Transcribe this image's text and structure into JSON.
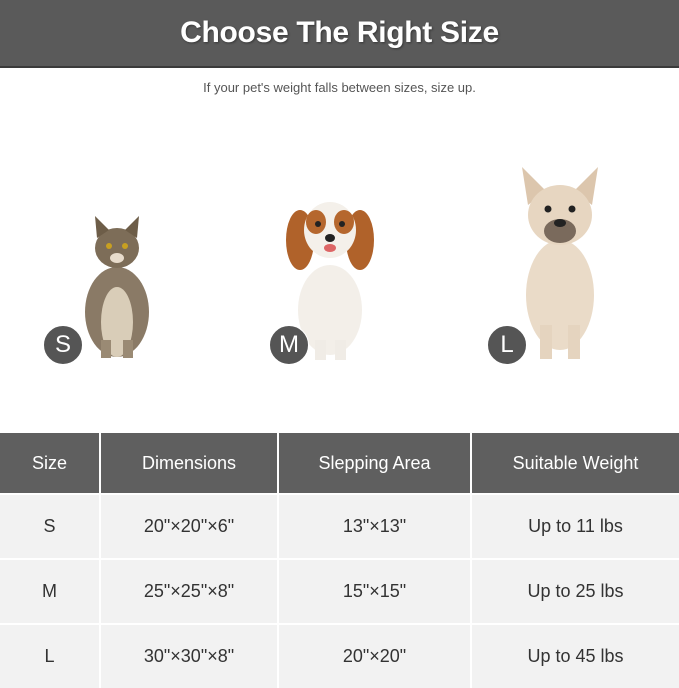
{
  "header": {
    "title": "Choose The Right Size"
  },
  "subtitle": "If your pet's weight falls between sizes, size up.",
  "pets": [
    {
      "size": "S",
      "animal": "cat"
    },
    {
      "size": "M",
      "animal": "cavalier-king-charles-spaniel"
    },
    {
      "size": "L",
      "animal": "french-bulldog"
    }
  ],
  "badge_color": "#555555",
  "table": {
    "headers": [
      "Size",
      "Dimensions",
      "Slepping Area",
      "Suitable Weight"
    ],
    "rows": [
      [
        "S",
        "20\"×20\"×6\"",
        "13\"×13\"",
        "Up to 11 lbs"
      ],
      [
        "M",
        "25\"×25\"×8\"",
        "15\"×15\"",
        "Up to 25 lbs"
      ],
      [
        "L",
        "30\"×30\"×8\"",
        "20\"×20\"",
        "Up to 45 lbs"
      ]
    ]
  }
}
